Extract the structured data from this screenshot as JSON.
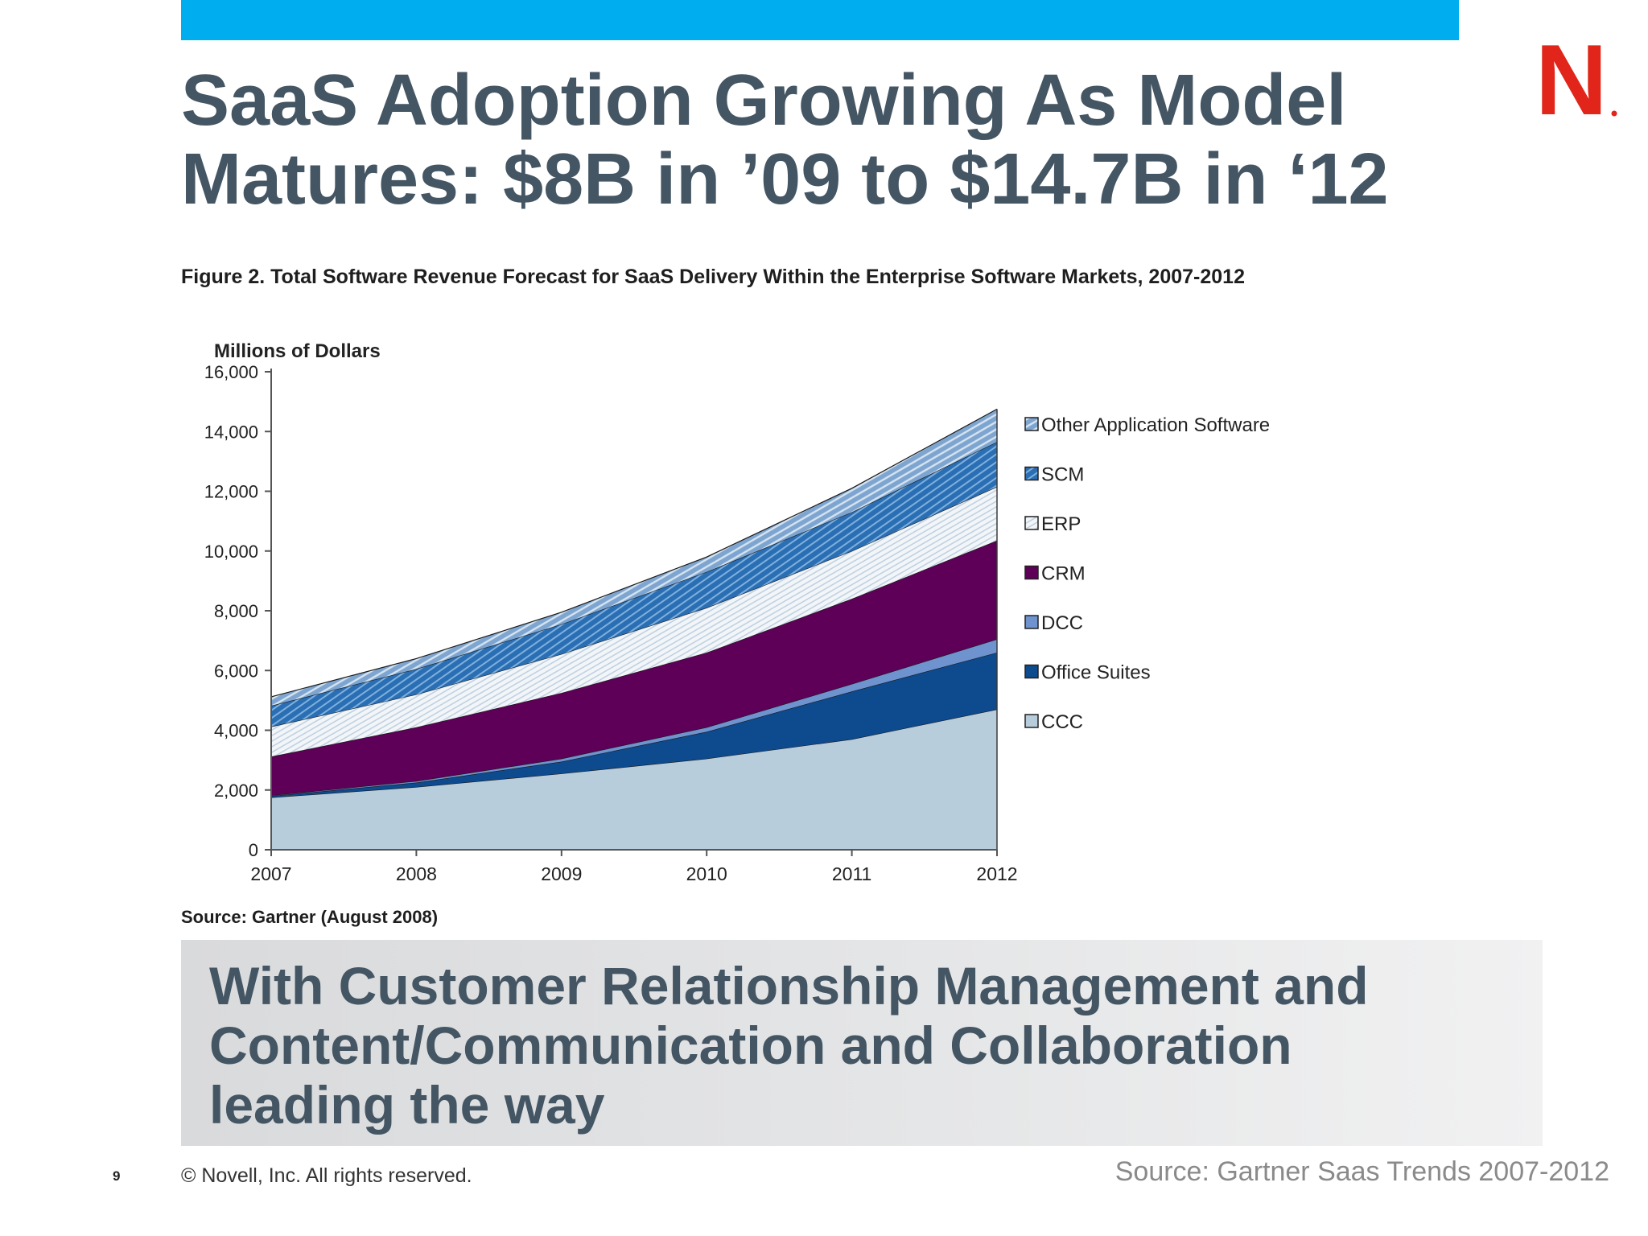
{
  "slide": {
    "title_lines": [
      "SaaS Adoption Growing As Model",
      "Matures: $8B in ’09 to $14.7B in ‘12"
    ],
    "figure_caption": "Figure 2. Total Software Revenue Forecast for SaaS Delivery Within the Enterprise Software Markets, 2007-2012",
    "chart_source": "Source: Gartner (August 2008)",
    "callout_lines": [
      "With Customer Relationship Management and",
      "Content/Communication and Collaboration",
      "leading the way"
    ],
    "page_number": "9",
    "copyright": "©  Novell, Inc.  All rights reserved.",
    "source": "Source: Gartner Saas Trends 2007-2012",
    "logo_letter": "N",
    "colors": {
      "top_bar": "#00AEEF",
      "logo": "#E1251B",
      "title": "#445563"
    }
  },
  "chart_data": {
    "type": "area",
    "stacked": true,
    "ylabel": "Millions of Dollars",
    "xlabel": "",
    "x": [
      "2007",
      "2008",
      "2009",
      "2010",
      "2011",
      "2012"
    ],
    "ylim": [
      0,
      16000
    ],
    "yticks": [
      0,
      2000,
      4000,
      6000,
      8000,
      10000,
      12000,
      14000,
      16000
    ],
    "ytick_labels": [
      "0",
      "2,000",
      "4,000",
      "6,000",
      "8,000",
      "10,000",
      "12,000",
      "14,000",
      "16,000"
    ],
    "legend_position": "right",
    "series": [
      {
        "name": "CCC",
        "values": [
          1750,
          2100,
          2550,
          3050,
          3700,
          4700
        ],
        "color": "#B8CDDC"
      },
      {
        "name": "Office Suites",
        "values": [
          50,
          150,
          400,
          900,
          1600,
          1900
        ],
        "color": "#0D4A8E"
      },
      {
        "name": "DCC",
        "values": [
          20,
          50,
          100,
          150,
          250,
          450
        ],
        "color": "#6E93CF"
      },
      {
        "name": "CRM",
        "values": [
          1300,
          1800,
          2200,
          2500,
          2850,
          3300
        ],
        "color": "#5E0057"
      },
      {
        "name": "ERP",
        "values": [
          1000,
          1100,
          1300,
          1500,
          1600,
          1800
        ],
        "color": "#E6EDF4"
      },
      {
        "name": "SCM",
        "values": [
          700,
          850,
          1000,
          1200,
          1300,
          1500
        ],
        "color": "#2A6EB4"
      },
      {
        "name": "Other Application Software",
        "values": [
          300,
          350,
          400,
          500,
          800,
          1100
        ],
        "color": "#7DA5D0"
      }
    ],
    "legend_order": [
      "Other Application Software",
      "SCM",
      "ERP",
      "CRM",
      "DCC",
      "Office Suites",
      "CCC"
    ]
  }
}
